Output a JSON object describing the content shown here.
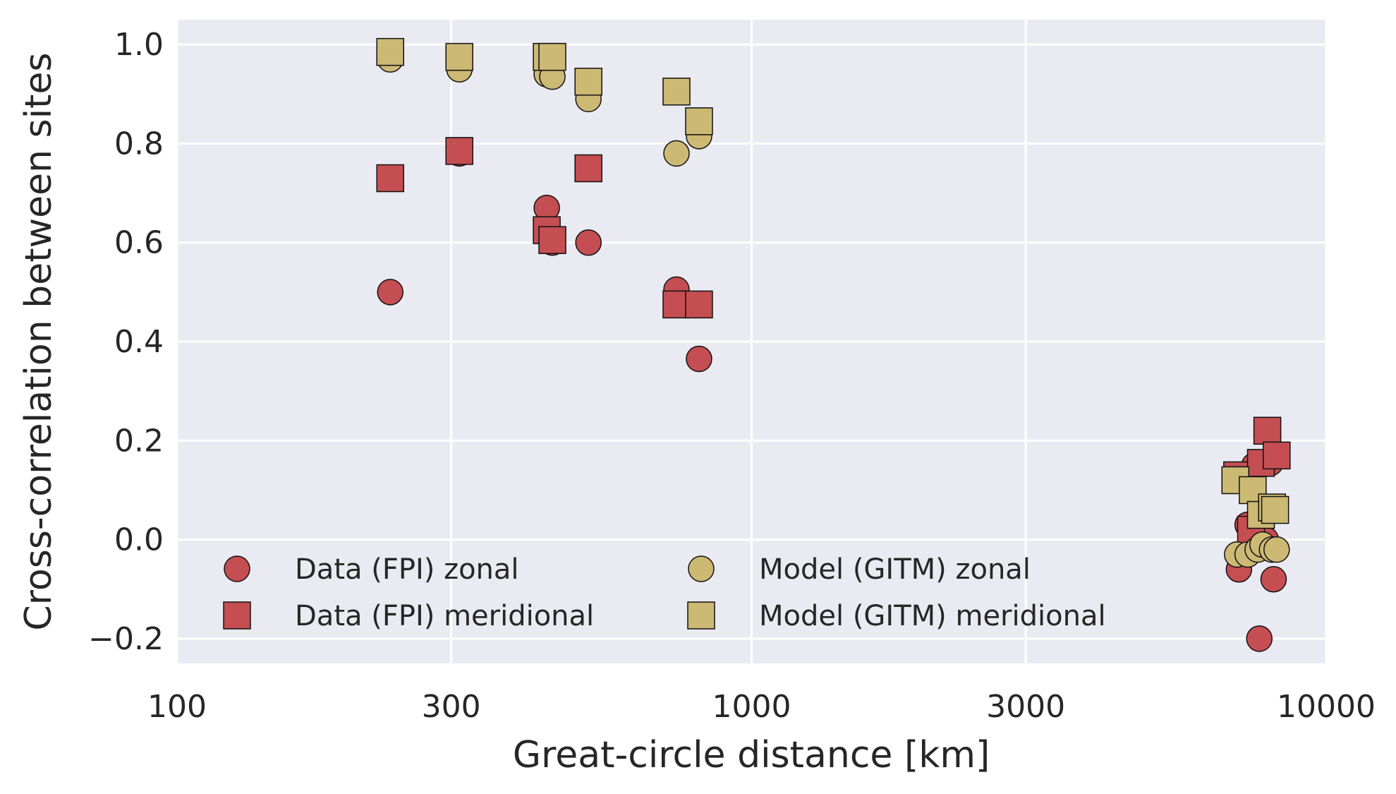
{
  "chart_data": {
    "type": "scatter",
    "xlabel": "Great-circle distance [km]",
    "ylabel": "Cross-correlation between sites",
    "xscale": "log",
    "xlim": [
      100,
      10000
    ],
    "ylim": [
      -0.25,
      1.05
    ],
    "xticks": [
      100,
      300,
      1000,
      3000,
      10000
    ],
    "xtick_labels": [
      "100",
      "300",
      "1000",
      "3000",
      "10000"
    ],
    "yticks": [
      -0.2,
      0.0,
      0.2,
      0.4,
      0.6,
      0.8,
      1.0
    ],
    "ytick_labels": [
      "−0.2",
      "0.0",
      "0.2",
      "0.4",
      "0.6",
      "0.8",
      "1.0"
    ],
    "grid": true,
    "legend_position": "lower-left, two columns",
    "colors": {
      "data": "#c44e52",
      "model": "#ccb974",
      "background": "#eaeaf2",
      "grid": "#ffffff"
    },
    "series": [
      {
        "name": "Data (FPI) zonal",
        "marker": "circle",
        "color": "#c44e52",
        "points": [
          [
            235,
            0.5
          ],
          [
            310,
            0.78
          ],
          [
            440,
            0.67
          ],
          [
            450,
            0.6
          ],
          [
            520,
            0.6
          ],
          [
            740,
            0.505
          ],
          [
            810,
            0.365
          ],
          [
            7050,
            -0.06
          ],
          [
            7300,
            0.03
          ],
          [
            7500,
            0.15
          ],
          [
            7650,
            -0.2
          ],
          [
            7850,
            0.0
          ],
          [
            8000,
            0.155
          ],
          [
            8100,
            -0.08
          ]
        ]
      },
      {
        "name": "Data (FPI) meridional",
        "marker": "square",
        "color": "#c44e52",
        "points": [
          [
            235,
            0.73
          ],
          [
            310,
            0.785
          ],
          [
            440,
            0.625
          ],
          [
            450,
            0.605
          ],
          [
            520,
            0.75
          ],
          [
            740,
            0.475
          ],
          [
            810,
            0.475
          ],
          [
            7000,
            0.13
          ],
          [
            7400,
            0.02
          ],
          [
            7700,
            0.155
          ],
          [
            7900,
            0.22
          ],
          [
            8200,
            0.17
          ]
        ]
      },
      {
        "name": "Model (GITM) zonal",
        "marker": "circle",
        "color": "#ccb974",
        "points": [
          [
            235,
            0.97
          ],
          [
            310,
            0.95
          ],
          [
            440,
            0.94
          ],
          [
            450,
            0.935
          ],
          [
            520,
            0.89
          ],
          [
            740,
            0.78
          ],
          [
            810,
            0.815
          ],
          [
            7000,
            -0.03
          ],
          [
            7300,
            -0.03
          ],
          [
            7600,
            -0.02
          ],
          [
            7750,
            -0.01
          ],
          [
            8050,
            -0.02
          ],
          [
            8200,
            -0.02
          ]
        ]
      },
      {
        "name": "Model (GITM) meridional",
        "marker": "square",
        "color": "#ccb974",
        "points": [
          [
            235,
            0.985
          ],
          [
            310,
            0.975
          ],
          [
            440,
            0.975
          ],
          [
            450,
            0.975
          ],
          [
            520,
            0.925
          ],
          [
            740,
            0.905
          ],
          [
            810,
            0.845
          ],
          [
            6950,
            0.12
          ],
          [
            7450,
            0.1
          ],
          [
            7700,
            0.05
          ],
          [
            8050,
            0.065
          ],
          [
            8150,
            0.06
          ]
        ]
      }
    ]
  }
}
